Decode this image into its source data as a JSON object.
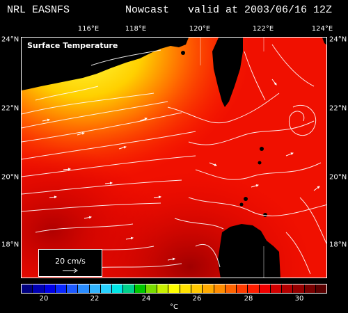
{
  "header": {
    "model": "NRL EASNFS",
    "run_type": "Nowcast",
    "valid": "valid at 2003/06/16 12Z"
  },
  "map": {
    "field_title": "Surface Temperature",
    "lon_labels": [
      "116°E",
      "118°E",
      "120°E",
      "122°E",
      "124°E"
    ],
    "lat_labels": [
      "24°N",
      "22°N",
      "20°N",
      "18°N"
    ],
    "land_color": "#000000",
    "vector_color": "#ffffff"
  },
  "reference_vector": {
    "label": "20 cm/s"
  },
  "colorbar": {
    "colors": [
      "#000080",
      "#0000b4",
      "#0000e6",
      "#0a28ff",
      "#1e5aff",
      "#2a8cff",
      "#32b4ff",
      "#28d2ff",
      "#00e6e6",
      "#00d28c",
      "#00c800",
      "#78dc00",
      "#c8f000",
      "#ffff00",
      "#ffe100",
      "#ffc800",
      "#ffaa00",
      "#ff8c00",
      "#ff6400",
      "#ff3c00",
      "#ff1e00",
      "#f00000",
      "#d20000",
      "#b40000",
      "#960000",
      "#780000",
      "#5a0000"
    ],
    "ticks": [
      "20",
      "22",
      "24",
      "26",
      "28",
      "30"
    ],
    "unit": "°C"
  }
}
